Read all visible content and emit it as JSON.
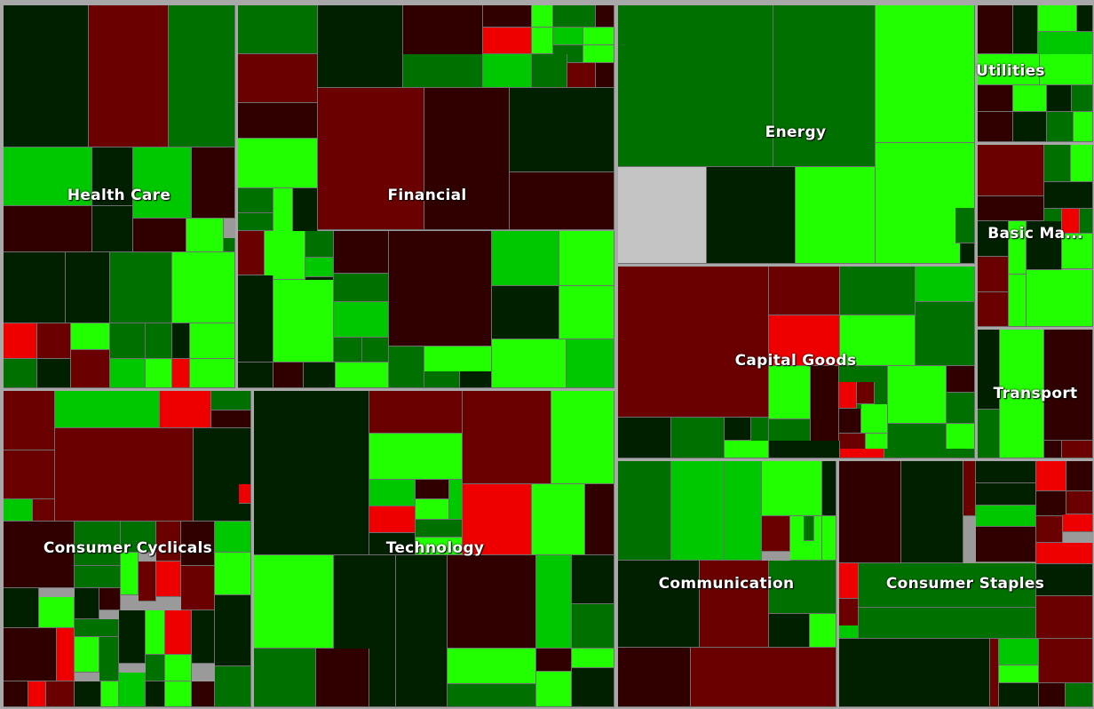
{
  "colors": {
    "strong_gain": "#22ff00",
    "gain": "#00c800",
    "mild_gain": "#007000",
    "flat": "#002000",
    "mild_loss": "#300000",
    "loss": "#6a0000",
    "strong_loss": "#ee0000",
    "no_data": "#c4c4c4",
    "border": "#a8a8a8"
  },
  "sectors": [
    {
      "id": "health-care",
      "label": "Health Care"
    },
    {
      "id": "financial",
      "label": "Financial"
    },
    {
      "id": "energy",
      "label": "Energy"
    },
    {
      "id": "utilities",
      "label": "Utilities"
    },
    {
      "id": "basic-materials",
      "label": "Basic Ma..."
    },
    {
      "id": "capital-goods",
      "label": "Capital Goods"
    },
    {
      "id": "transport",
      "label": "Transport"
    },
    {
      "id": "consumer-cyclicals",
      "label": "Consumer Cyclicals"
    },
    {
      "id": "technology",
      "label": "Technology"
    },
    {
      "id": "communication",
      "label": "Communication"
    },
    {
      "id": "consumer-staples",
      "label": "Consumer Staples"
    }
  ]
}
